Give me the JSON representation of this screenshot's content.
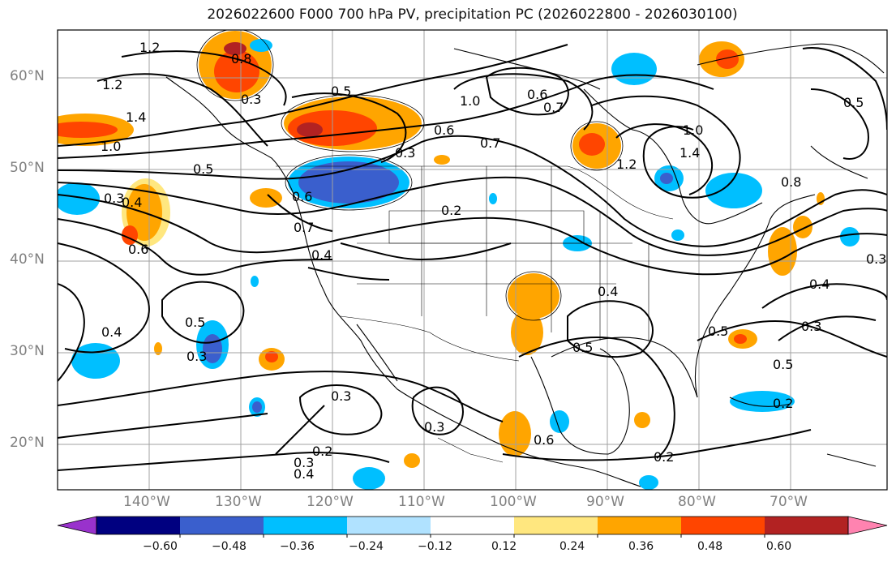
{
  "title": "2026022600 F000 700 hPa PV, precipitation PC (2026022800 - 2026030100)",
  "lat_labels": [
    "60°N",
    "50°N",
    "40°N",
    "30°N",
    "20°N"
  ],
  "lon_labels": [
    "140°W",
    "130°W",
    "120°W",
    "110°W",
    "100°W",
    "90°W",
    "80°W",
    "70°W"
  ],
  "colorbar": {
    "colors": [
      "#9932CC",
      "#000080",
      "#3A5FCD",
      "#00BFFF",
      "#B0E2FF",
      "#FFFFFF",
      "#FFE77F",
      "#FFA500",
      "#FF4500",
      "#B22222",
      "#FF83B0"
    ],
    "tick_labels": [
      "−0.60",
      "−0.48",
      "−0.36",
      "−0.24",
      "−0.12",
      "0.12",
      "0.24",
      "0.36",
      "0.48",
      "0.60"
    ]
  },
  "contour_labels": [
    "1.2",
    "0.8",
    "0.5",
    "0.3",
    "1.2",
    "1.4",
    "1.0",
    "0.5",
    "0.3",
    "0.6",
    "0.7",
    "1.0",
    "0.6",
    "0.7",
    "1.0",
    "1.4",
    "1.2",
    "0.8",
    "0.6",
    "0.5",
    "0.3",
    "0.4",
    "0.6",
    "0.7",
    "0.4",
    "0.2",
    "0.4",
    "0.5",
    "0.3",
    "0.4",
    "0.3",
    "0.4",
    "0.3",
    "0.2",
    "0.3",
    "0.4",
    "0.5",
    "0.3",
    "0.5",
    "0.2",
    "0.2",
    "0.6",
    "0.5",
    "0.3"
  ]
}
